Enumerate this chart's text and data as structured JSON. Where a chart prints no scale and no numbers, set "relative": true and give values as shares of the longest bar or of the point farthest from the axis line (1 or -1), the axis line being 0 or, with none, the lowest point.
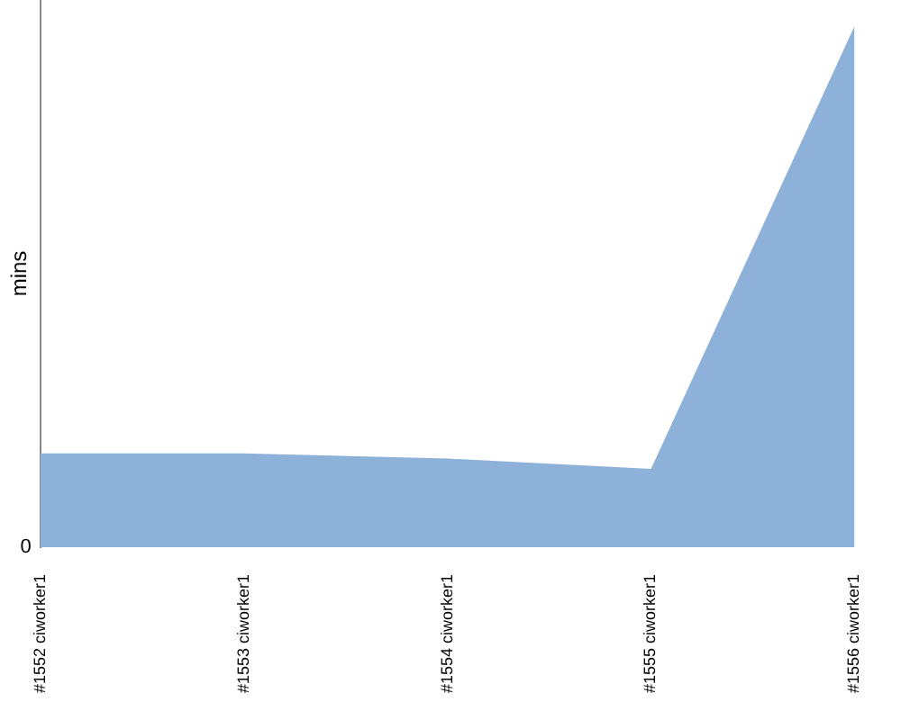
{
  "chart_data": {
    "type": "area",
    "relative": true,
    "ylabel": "mins",
    "categories": [
      "#1552 ciworker1",
      "#1553 ciworker1",
      "#1554 ciworker1",
      "#1555 ciworker1",
      "#1556 ciworker1"
    ],
    "series": [
      {
        "color": "#8eb1da",
        "values": [
          0.18,
          0.18,
          0.17,
          0.15,
          1
        ]
      }
    ],
    "annotations": [
      "0"
    ],
    "legend": false
  }
}
